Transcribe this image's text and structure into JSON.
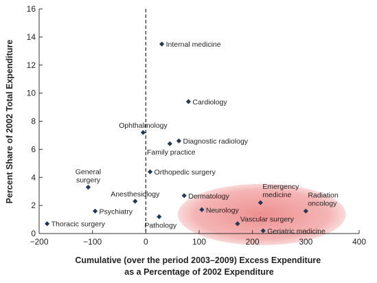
{
  "chart_data": {
    "type": "scatter",
    "xlabel": [
      "Cumulative (over the period 2003–2009) Excess Expenditure",
      "as a Percentage of 2002 Expenditure"
    ],
    "ylabel": "Percent Share of 2002 Total Expenditure",
    "xlim": [
      -200,
      400
    ],
    "ylim": [
      0,
      16
    ],
    "xticks": [
      -200,
      -100,
      0,
      100,
      200,
      300,
      400
    ],
    "yticks": [
      0,
      2,
      4,
      6,
      8,
      10,
      12,
      14,
      16
    ],
    "xtick_labels": [
      "−200",
      "−100",
      "0",
      "100",
      "200",
      "300",
      "400"
    ],
    "ytick_labels": [
      "0",
      "2",
      "4",
      "6",
      "8",
      "10",
      "12",
      "14",
      "16"
    ],
    "reference_line": {
      "x": 0,
      "style": "dashed"
    },
    "highlight_region": {
      "shape": "ellipse",
      "color": "#e86a6a",
      "x_range": [
        60,
        375
      ],
      "y_range": [
        0,
        3
      ]
    },
    "marker_color": "#1f3a57",
    "points": [
      {
        "label": [
          "Internal medicine"
        ],
        "x": 30,
        "y": 13.5,
        "anchor": "right"
      },
      {
        "label": [
          "Cardiology"
        ],
        "x": 80,
        "y": 9.4,
        "anchor": "right"
      },
      {
        "label": [
          "Ophthalmology"
        ],
        "x": -5,
        "y": 7.2,
        "anchor": "above"
      },
      {
        "label": [
          "Diagnostic radiology"
        ],
        "x": 62,
        "y": 6.6,
        "anchor": "right"
      },
      {
        "label": [
          "Family practice"
        ],
        "x": 45,
        "y": 6.4,
        "anchor": "below"
      },
      {
        "label": [
          "Orthopedic surgery"
        ],
        "x": 8,
        "y": 4.4,
        "anchor": "right"
      },
      {
        "label": [
          "General",
          "surgery"
        ],
        "x": -108,
        "y": 3.3,
        "anchor": "above"
      },
      {
        "label": [
          "Anesthesiology"
        ],
        "x": -20,
        "y": 2.3,
        "anchor": "above"
      },
      {
        "label": [
          "Dermatology"
        ],
        "x": 72,
        "y": 2.7,
        "anchor": "right"
      },
      {
        "label": [
          "Psychiatry"
        ],
        "x": -95,
        "y": 1.6,
        "anchor": "right"
      },
      {
        "label": [
          "Pathology"
        ],
        "x": 25,
        "y": 1.2,
        "anchor": "below"
      },
      {
        "label": [
          "Thoracic surgery"
        ],
        "x": -185,
        "y": 0.7,
        "anchor": "right"
      },
      {
        "label": [
          "Neurology"
        ],
        "x": 105,
        "y": 1.7,
        "anchor": "right"
      },
      {
        "label": [
          "Emergency",
          "medicine"
        ],
        "x": 215,
        "y": 2.2,
        "anchor": "above-right"
      },
      {
        "label": [
          "Radiation",
          "oncology"
        ],
        "x": 300,
        "y": 1.6,
        "anchor": "above-right"
      },
      {
        "label": [
          "Vascular surgery"
        ],
        "x": 172,
        "y": 0.7,
        "anchor": "right-up"
      },
      {
        "label": [
          "Geriatric medicine"
        ],
        "x": 220,
        "y": 0.2,
        "anchor": "right"
      }
    ]
  }
}
